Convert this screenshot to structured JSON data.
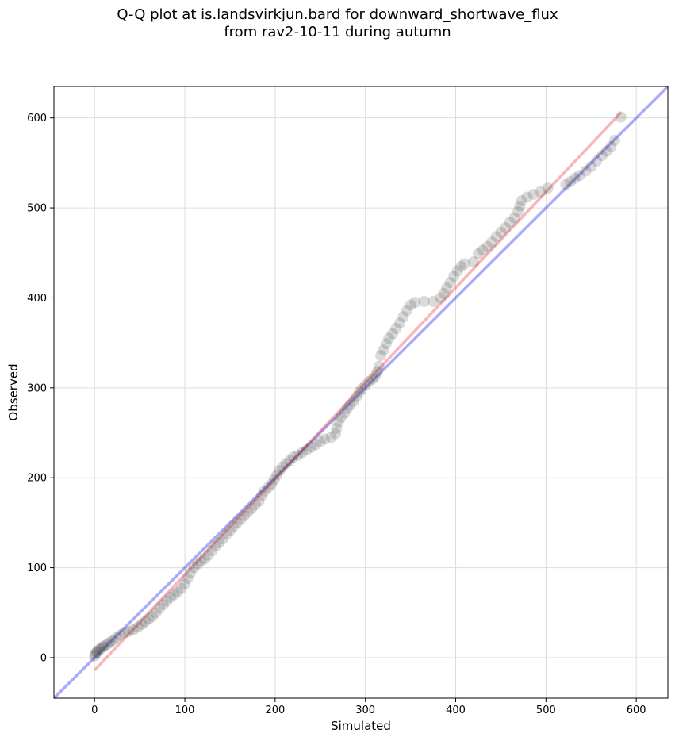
{
  "chart_data": {
    "type": "scatter",
    "title": [
      "Q-Q plot at is.landsvirkjun.bard for downward_shortwave_flux",
      "from rav2-10-11 during autumn"
    ],
    "xlabel": "Simulated",
    "ylabel": "Observed",
    "xlim": [
      -45,
      635
    ],
    "ylim": [
      -45,
      635
    ],
    "xticks": [
      0,
      100,
      200,
      300,
      400,
      500,
      600
    ],
    "yticks": [
      0,
      100,
      200,
      300,
      400,
      500,
      600
    ],
    "grid": true,
    "colors": {
      "points": "#333333",
      "identity_line": "#0000ee",
      "fit_line": "#ee2222",
      "grid": "#dddddd"
    },
    "identity_line": {
      "x": [
        -45,
        635
      ],
      "y": [
        -45,
        635
      ]
    },
    "fit_line": {
      "x": [
        0,
        583
      ],
      "y": [
        -14,
        606
      ]
    },
    "points": [
      [
        0,
        2
      ],
      [
        1,
        4
      ],
      [
        2,
        6
      ],
      [
        3,
        7
      ],
      [
        5,
        9
      ],
      [
        7,
        10
      ],
      [
        9,
        12
      ],
      [
        11,
        13
      ],
      [
        14,
        15
      ],
      [
        17,
        17
      ],
      [
        20,
        19
      ],
      [
        24,
        22
      ],
      [
        28,
        25
      ],
      [
        33,
        28
      ],
      [
        38,
        29
      ],
      [
        43,
        31
      ],
      [
        48,
        34
      ],
      [
        52,
        37
      ],
      [
        56,
        40
      ],
      [
        60,
        43
      ],
      [
        64,
        46
      ],
      [
        68,
        50
      ],
      [
        72,
        55
      ],
      [
        76,
        59
      ],
      [
        80,
        63
      ],
      [
        84,
        67
      ],
      [
        88,
        70
      ],
      [
        92,
        73
      ],
      [
        96,
        77
      ],
      [
        100,
        82
      ],
      [
        103,
        88
      ],
      [
        106,
        94
      ],
      [
        110,
        100
      ],
      [
        114,
        104
      ],
      [
        118,
        107
      ],
      [
        122,
        110
      ],
      [
        126,
        114
      ],
      [
        130,
        119
      ],
      [
        134,
        124
      ],
      [
        138,
        128
      ],
      [
        142,
        132
      ],
      [
        146,
        137
      ],
      [
        150,
        141
      ],
      [
        154,
        146
      ],
      [
        158,
        150
      ],
      [
        162,
        154
      ],
      [
        166,
        158
      ],
      [
        170,
        162
      ],
      [
        174,
        166
      ],
      [
        178,
        170
      ],
      [
        182,
        174
      ],
      [
        185,
        180
      ],
      [
        188,
        185
      ],
      [
        192,
        189
      ],
      [
        196,
        193
      ],
      [
        199,
        198
      ],
      [
        202,
        203
      ],
      [
        205,
        208
      ],
      [
        208,
        212
      ],
      [
        212,
        216
      ],
      [
        216,
        219
      ],
      [
        220,
        223
      ],
      [
        225,
        225
      ],
      [
        230,
        228
      ],
      [
        235,
        231
      ],
      [
        240,
        234
      ],
      [
        245,
        237
      ],
      [
        250,
        240
      ],
      [
        255,
        243
      ],
      [
        262,
        245
      ],
      [
        267,
        249
      ],
      [
        268,
        255
      ],
      [
        270,
        262
      ],
      [
        273,
        267
      ],
      [
        277,
        272
      ],
      [
        280,
        277
      ],
      [
        283,
        281
      ],
      [
        287,
        285
      ],
      [
        290,
        290
      ],
      [
        293,
        295
      ],
      [
        296,
        299
      ],
      [
        300,
        303
      ],
      [
        304,
        307
      ],
      [
        308,
        310
      ],
      [
        311,
        313
      ],
      [
        313,
        318
      ],
      [
        315,
        324
      ],
      [
        317,
        336
      ],
      [
        320,
        342
      ],
      [
        323,
        349
      ],
      [
        326,
        355
      ],
      [
        330,
        360
      ],
      [
        334,
        366
      ],
      [
        338,
        372
      ],
      [
        342,
        379
      ],
      [
        346,
        386
      ],
      [
        350,
        392
      ],
      [
        355,
        395
      ],
      [
        365,
        396
      ],
      [
        375,
        396
      ],
      [
        383,
        400
      ],
      [
        387,
        405
      ],
      [
        390,
        411
      ],
      [
        394,
        417
      ],
      [
        398,
        424
      ],
      [
        402,
        430
      ],
      [
        406,
        435
      ],
      [
        410,
        438
      ],
      [
        420,
        440
      ],
      [
        425,
        449
      ],
      [
        430,
        453
      ],
      [
        435,
        457
      ],
      [
        440,
        462
      ],
      [
        445,
        468
      ],
      [
        450,
        473
      ],
      [
        455,
        478
      ],
      [
        460,
        484
      ],
      [
        465,
        489
      ],
      [
        469,
        496
      ],
      [
        471,
        502
      ],
      [
        473,
        508
      ],
      [
        479,
        512
      ],
      [
        486,
        515
      ],
      [
        494,
        518
      ],
      [
        502,
        522
      ],
      [
        522,
        526
      ],
      [
        527,
        529
      ],
      [
        532,
        533
      ],
      [
        537,
        536
      ],
      [
        544,
        541
      ],
      [
        550,
        546
      ],
      [
        556,
        552
      ],
      [
        562,
        558
      ],
      [
        567,
        563
      ],
      [
        572,
        568
      ],
      [
        576,
        575
      ],
      [
        583,
        601
      ]
    ]
  }
}
